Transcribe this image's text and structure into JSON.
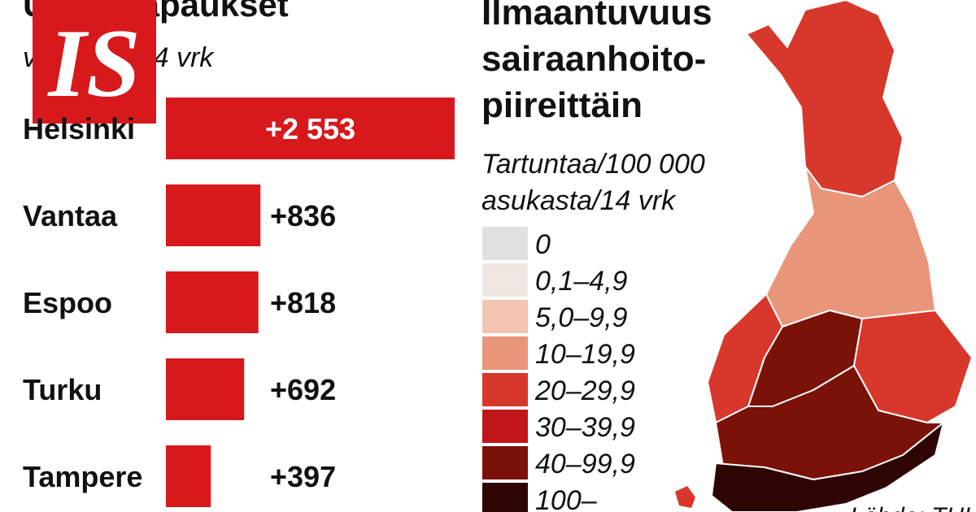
{
  "chart_data": {
    "type": "bar",
    "title": "Uudet tapaukset",
    "subtitle": "viimeiset 14 vrk",
    "categories": [
      "Helsinki",
      "Vantaa",
      "Espoo",
      "Turku",
      "Tampere"
    ],
    "values": [
      2553,
      836,
      818,
      692,
      397
    ],
    "value_labels": [
      "+2 553",
      "+836",
      "+818",
      "+692",
      "+397"
    ],
    "color": "#d7191c"
  },
  "logo": "IS",
  "map": {
    "title": [
      "Ilmaantuvuus",
      "sairaanhoito-",
      "piireittäin"
    ],
    "subtitle": [
      "Tartuntaa/100 000",
      "asukasta/14 vrk"
    ],
    "legend": [
      {
        "label": "0",
        "color": "#e0e0e0"
      },
      {
        "label": "0,1–4,9",
        "color": "#efe6e2"
      },
      {
        "label": "5,0–9,9",
        "color": "#f4c4b2"
      },
      {
        "label": "10–19,9",
        "color": "#e8957a"
      },
      {
        "label": "20–29,9",
        "color": "#d8372b"
      },
      {
        "label": "30–39,9",
        "color": "#c0161a"
      },
      {
        "label": "40–99,9",
        "color": "#7a1208"
      },
      {
        "label": "100–",
        "color": "#2e0503"
      }
    ],
    "source": "Lähde: THL"
  }
}
